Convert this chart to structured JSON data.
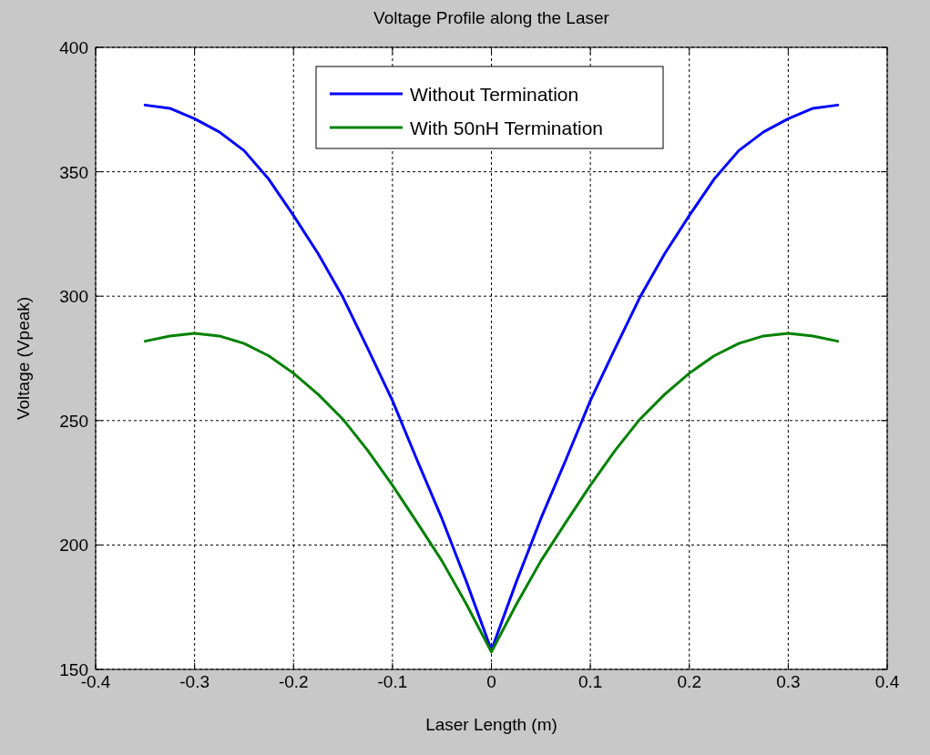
{
  "chart_data": {
    "type": "line",
    "title": "Voltage Profile along the Laser",
    "xlabel": "Laser Length (m)",
    "ylabel": "Voltage (Vpeak)",
    "x": [
      -0.35,
      -0.325,
      -0.3,
      -0.275,
      -0.25,
      -0.225,
      -0.2,
      -0.175,
      -0.15,
      -0.125,
      -0.1,
      -0.075,
      -0.05,
      -0.025,
      0,
      0.025,
      0.05,
      0.075,
      0.1,
      0.125,
      0.15,
      0.175,
      0.2,
      0.225,
      0.25,
      0.275,
      0.3,
      0.325,
      0.35
    ],
    "series": [
      {
        "name": "Without Termination",
        "color": "#0000ff",
        "values": [
          376.8,
          375.5,
          371.3,
          366,
          358.5,
          347,
          332.4,
          317,
          299.5,
          279,
          258,
          234,
          210.6,
          185,
          157.7,
          185,
          210.6,
          234,
          258,
          279,
          299.5,
          317,
          332.4,
          347,
          358.5,
          366,
          371.3,
          375.5,
          376.8
        ]
      },
      {
        "name": "With 50nH Termination",
        "color": "#008000",
        "values": [
          281.9,
          284,
          285.1,
          284,
          281,
          276,
          269,
          260.5,
          250.5,
          238,
          224,
          209,
          193.6,
          176,
          157,
          176,
          193.6,
          209,
          224,
          238,
          250.5,
          260.5,
          269,
          276,
          281,
          284,
          285.1,
          284,
          281.9
        ]
      }
    ],
    "xlim": [
      -0.4,
      0.4
    ],
    "xticks": [
      -0.4,
      -0.3,
      -0.2,
      -0.1,
      0,
      0.1,
      0.2,
      0.3,
      0.4
    ],
    "ylim": [
      150,
      400
    ],
    "yticks": [
      150,
      200,
      250,
      300,
      350,
      400
    ],
    "grid": true,
    "legend": "top",
    "marker": "none",
    "line_style": "solid"
  }
}
